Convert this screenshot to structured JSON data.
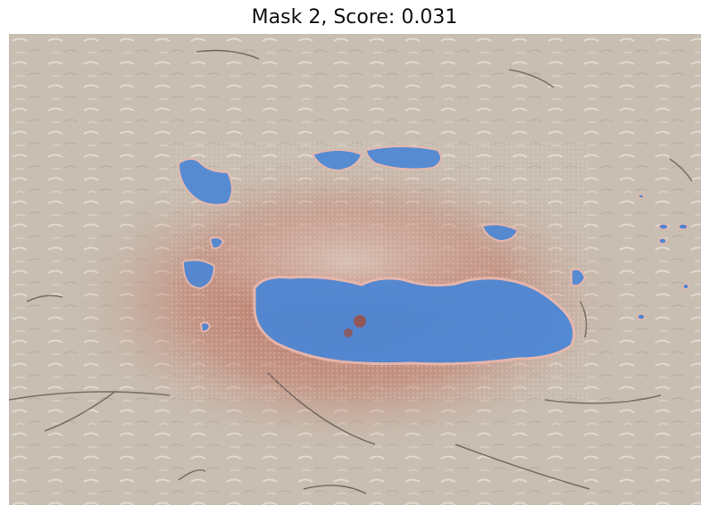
{
  "title": "Mask 2, Score: 0.031",
  "colors": {
    "skin": "#c9bfb3",
    "erythema": "#b5523e",
    "mask_overlay": "#4a86d6",
    "mask_edge": "#e8b7ae"
  }
}
